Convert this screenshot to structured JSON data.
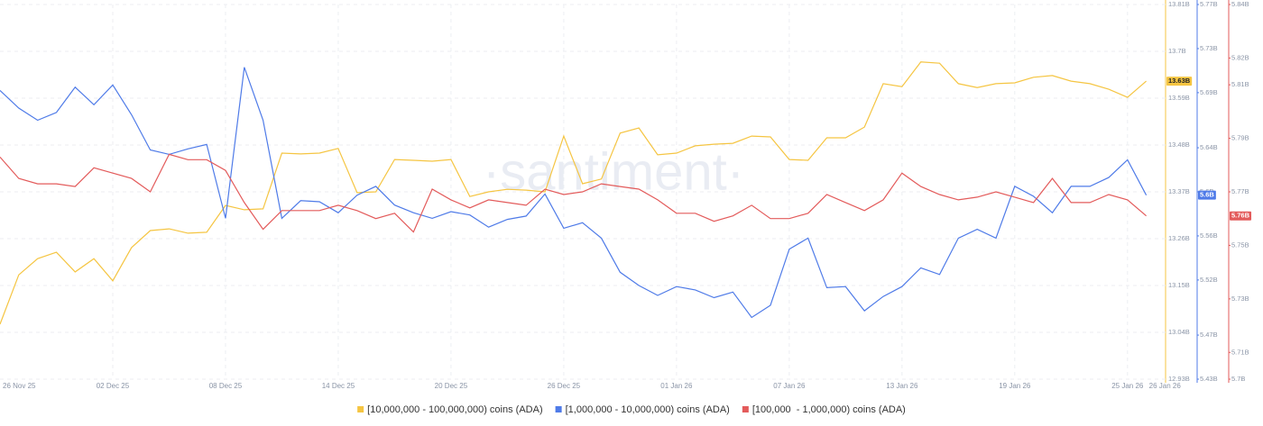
{
  "chart_data": {
    "type": "line",
    "watermark": "·santiment·",
    "categories": [
      "26 Nov 25",
      null,
      null,
      null,
      null,
      null,
      "02 Dec 25",
      null,
      null,
      null,
      null,
      null,
      "08 Dec 25",
      null,
      null,
      null,
      null,
      null,
      "14 Dec 25",
      null,
      null,
      null,
      null,
      null,
      "20 Dec 25",
      null,
      null,
      null,
      null,
      null,
      "26 Dec 25",
      null,
      null,
      null,
      null,
      null,
      "01 Jan 26",
      null,
      null,
      null,
      null,
      null,
      "07 Jan 26",
      null,
      null,
      null,
      null,
      null,
      "13 Jan 26",
      null,
      null,
      null,
      null,
      null,
      "19 Jan 26",
      null,
      null,
      null,
      null,
      null,
      "25 Jan 26",
      "26 Jan 26"
    ],
    "ylim": [
      12.93,
      13.81
    ],
    "yticks": [
      {
        "value": 12.93,
        "label": "12.93B"
      },
      {
        "value": 13.04,
        "label": "13.04B"
      },
      {
        "value": 13.15,
        "label": "13.15B"
      },
      {
        "value": 13.26,
        "label": "13.26B"
      },
      {
        "value": 13.37,
        "label": "13.37B"
      },
      {
        "value": 13.48,
        "label": "13.48B"
      },
      {
        "value": 13.59,
        "label": "13.59B"
      },
      {
        "value": 13.7,
        "label": "13.7B"
      },
      {
        "value": 13.81,
        "label": "13.81B"
      }
    ],
    "y2lim": [
      5.43,
      5.77
    ],
    "y2ticks": [
      {
        "value": 5.43,
        "label": "5.43B"
      },
      {
        "value": 5.47,
        "label": "5.47B"
      },
      {
        "value": 5.52,
        "label": "5.52B"
      },
      {
        "value": 5.56,
        "label": "5.56B"
      },
      {
        "value": 5.6,
        "label": "5.6B"
      },
      {
        "value": 5.64,
        "label": "5.64B"
      },
      {
        "value": 5.69,
        "label": "5.69B"
      },
      {
        "value": 5.73,
        "label": "5.73B"
      },
      {
        "value": 5.77,
        "label": "5.77B"
      }
    ],
    "y3lim": [
      5.7,
      5.84
    ],
    "y3ticks": [
      {
        "value": 5.7,
        "label": "5.7B"
      },
      {
        "value": 5.71,
        "label": "5.71B"
      },
      {
        "value": 5.73,
        "label": "5.73B"
      },
      {
        "value": 5.75,
        "label": "5.75B"
      },
      {
        "value": 5.77,
        "label": "5.77B"
      },
      {
        "value": 5.79,
        "label": "5.79B"
      },
      {
        "value": 5.81,
        "label": "5.81B"
      },
      {
        "value": 5.82,
        "label": "5.82B"
      },
      {
        "value": 5.84,
        "label": "5.84B"
      }
    ],
    "grid": true,
    "legend": "bottom",
    "series": [
      {
        "name": "[10,000,000 - 100,000,000) coins (ADA)",
        "color": "#f5c542",
        "axis": "y",
        "badge": "13.63B",
        "values": [
          13.059,
          13.175,
          13.213,
          13.228,
          13.182,
          13.213,
          13.161,
          13.239,
          13.279,
          13.283,
          13.273,
          13.275,
          13.338,
          13.328,
          13.33,
          13.461,
          13.459,
          13.461,
          13.472,
          13.368,
          13.37,
          13.446,
          13.444,
          13.442,
          13.446,
          13.359,
          13.37,
          13.376,
          13.374,
          13.37,
          13.501,
          13.389,
          13.4,
          13.508,
          13.52,
          13.457,
          13.461,
          13.478,
          13.482,
          13.484,
          13.501,
          13.499,
          13.446,
          13.444,
          13.497,
          13.497,
          13.522,
          13.624,
          13.617,
          13.675,
          13.672,
          13.624,
          13.615,
          13.624,
          13.626,
          13.639,
          13.643,
          13.63,
          13.624,
          13.611,
          13.592,
          13.63
        ]
      },
      {
        "name": "[1,000,000 - 10,000,000) coins (ADA)",
        "color": "#4f7be8",
        "axis": "y2",
        "badge": "5.6B",
        "values": [
          5.692,
          5.676,
          5.665,
          5.672,
          5.695,
          5.679,
          5.697,
          5.67,
          5.638,
          5.634,
          5.639,
          5.643,
          5.576,
          5.713,
          5.665,
          5.576,
          5.592,
          5.591,
          5.581,
          5.597,
          5.605,
          5.588,
          5.581,
          5.576,
          5.582,
          5.579,
          5.568,
          5.575,
          5.578,
          5.598,
          5.567,
          5.572,
          5.558,
          5.527,
          5.515,
          5.506,
          5.514,
          5.511,
          5.504,
          5.509,
          5.486,
          5.497,
          5.548,
          5.558,
          5.513,
          5.514,
          5.492,
          5.505,
          5.514,
          5.531,
          5.525,
          5.558,
          5.566,
          5.558,
          5.605,
          5.596,
          5.581,
          5.605,
          5.605,
          5.613,
          5.629,
          5.597
        ]
      },
      {
        "name": "[100,000  - 1,000,000) coins (ADA)",
        "color": "#e35b5b",
        "axis": "y3",
        "badge": "5.76B",
        "values": [
          5.783,
          5.775,
          5.773,
          5.773,
          5.772,
          5.779,
          5.777,
          5.775,
          5.77,
          5.784,
          5.782,
          5.782,
          5.778,
          5.766,
          5.756,
          5.763,
          5.763,
          5.763,
          5.765,
          5.763,
          5.76,
          5.762,
          5.755,
          5.771,
          5.767,
          5.764,
          5.767,
          5.766,
          5.765,
          5.771,
          5.769,
          5.77,
          5.773,
          5.772,
          5.771,
          5.767,
          5.762,
          5.762,
          5.759,
          5.761,
          5.765,
          5.76,
          5.76,
          5.762,
          5.769,
          5.766,
          5.763,
          5.767,
          5.777,
          5.772,
          5.769,
          5.767,
          5.768,
          5.77,
          5.768,
          5.766,
          5.775,
          5.766,
          5.766,
          5.769,
          5.767,
          5.761
        ]
      }
    ]
  }
}
